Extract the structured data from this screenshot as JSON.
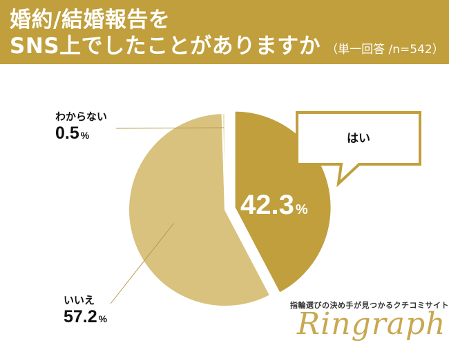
{
  "header": {
    "title_line1": "婚約/結婚報告を",
    "title_line2": "SNS上でしたことがありますか",
    "note": "（単一回答 /n=542）"
  },
  "colors": {
    "header_bg": "#c09f3c",
    "yes": "#c09f3c",
    "no": "#d9c27e",
    "unknown": "#ece3bd"
  },
  "chart_data": {
    "type": "pie",
    "title": "婚約/結婚報告をSNS上でしたことがありますか",
    "n": 542,
    "slices": [
      {
        "label": "はい",
        "value": 42.3,
        "unit": "%"
      },
      {
        "label": "いいえ",
        "value": 57.2,
        "unit": "%"
      },
      {
        "label": "わからない",
        "value": 0.5,
        "unit": "%"
      }
    ],
    "exploded_slice": "はい"
  },
  "labels": {
    "yes_name": "はい",
    "yes_pct": "42.3",
    "no_name": "いいえ",
    "no_pct": "57.2",
    "unknown_name": "わからない",
    "unknown_pct": "0.5",
    "pct_sign": "%"
  },
  "footer": {
    "tagline": "指輪選びの決め手が見つかるクチコミサイト",
    "logo": "Ringraph"
  }
}
